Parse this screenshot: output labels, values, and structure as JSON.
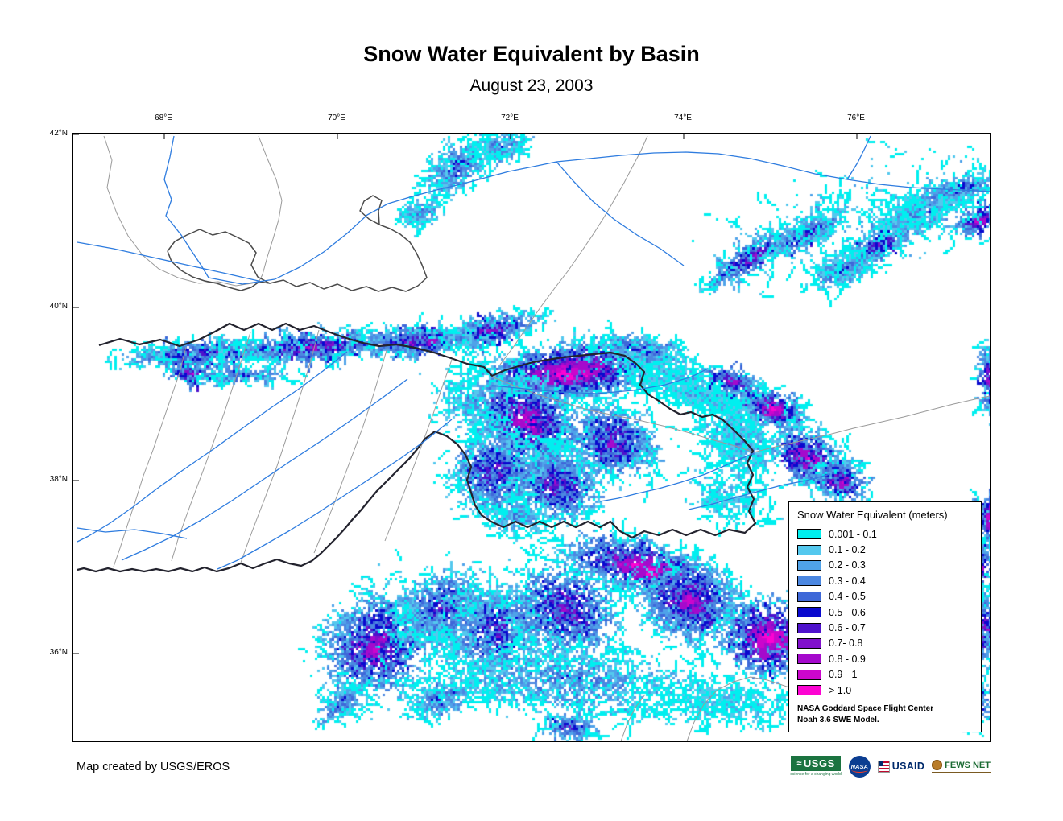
{
  "page": {
    "title": "Snow Water Equivalent by Basin",
    "subtitle": "August 23, 2003",
    "credit": "Map created by USGS/EROS"
  },
  "graticule": {
    "longitudes": [
      "68°E",
      "70°E",
      "72°E",
      "74°E",
      "76°E"
    ],
    "latitudes": [
      "42°N",
      "40°N",
      "38°N",
      "36°N"
    ]
  },
  "legend": {
    "title": "Snow Water Equivalent (meters)",
    "classes": [
      {
        "label": "0.001 - 0.1",
        "color": "#00EFEF"
      },
      {
        "label": "0.1 - 0.2",
        "color": "#54C8EE"
      },
      {
        "label": "0.2 - 0.3",
        "color": "#4FA2E9"
      },
      {
        "label": "0.3 - 0.4",
        "color": "#4B87E1"
      },
      {
        "label": "0.4 - 0.5",
        "color": "#3E68D8"
      },
      {
        "label": "0.5 - 0.6",
        "color": "#0909CE"
      },
      {
        "label": "0.6 - 0.7",
        "color": "#4E12CC"
      },
      {
        "label": "0.7- 0.8",
        "color": "#8010CC"
      },
      {
        "label": "0.8 - 0.9",
        "color": "#A50ACC"
      },
      {
        "label": "0.9 - 1",
        "color": "#CB06CC"
      },
      {
        "label": "> 1.0",
        "color": "#FC03D2"
      }
    ],
    "source_line1": "NASA Goddard Space Flight Center",
    "source_line2": "Noah 3.6 SWE Model."
  },
  "logos": {
    "usgs": {
      "name": "USGS",
      "tagline": "science for a changing world"
    },
    "nasa": {
      "name": "NASA"
    },
    "usaid": {
      "name": "USAID"
    },
    "fewsnet": {
      "name": "FEWS NET"
    }
  }
}
